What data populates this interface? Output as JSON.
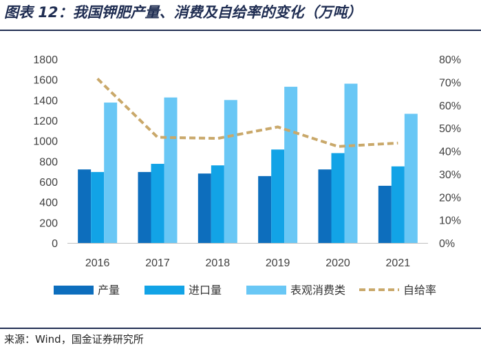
{
  "title": "图表 12：我国钾肥产量、消费及自给率的变化（万吨）",
  "source": "来源：Wind，国金证券研究所",
  "chart_data": {
    "type": "bar",
    "categories": [
      "2016",
      "2017",
      "2018",
      "2019",
      "2020",
      "2021"
    ],
    "series": [
      {
        "name": "产量",
        "kind": "bar",
        "axis": "left",
        "color": "#0d6ebd",
        "values": [
          720,
          695,
          680,
          655,
          720,
          560
        ]
      },
      {
        "name": "进口量",
        "kind": "bar",
        "axis": "left",
        "color": "#12a3e6",
        "values": [
          695,
          775,
          760,
          915,
          880,
          750
        ]
      },
      {
        "name": "表观消费类",
        "kind": "bar",
        "axis": "left",
        "color": "#69c7f5",
        "values": [
          1375,
          1425,
          1400,
          1530,
          1560,
          1265
        ]
      },
      {
        "name": "自给率",
        "kind": "line",
        "axis": "right",
        "color": "#c9a86a",
        "values": [
          0.715,
          0.46,
          0.455,
          0.505,
          0.42,
          0.435
        ]
      }
    ],
    "y_left": {
      "min": 0,
      "max": 1800,
      "step": 200,
      "ticks": [
        "0",
        "200",
        "400",
        "600",
        "800",
        "1000",
        "1200",
        "1400",
        "1600",
        "1800"
      ]
    },
    "y_right": {
      "min": 0,
      "max": 0.8,
      "step": 0.1,
      "ticks": [
        "0%",
        "10%",
        "20%",
        "30%",
        "40%",
        "50%",
        "60%",
        "70%",
        "80%"
      ]
    },
    "legend_position": "bottom",
    "grid": false
  }
}
